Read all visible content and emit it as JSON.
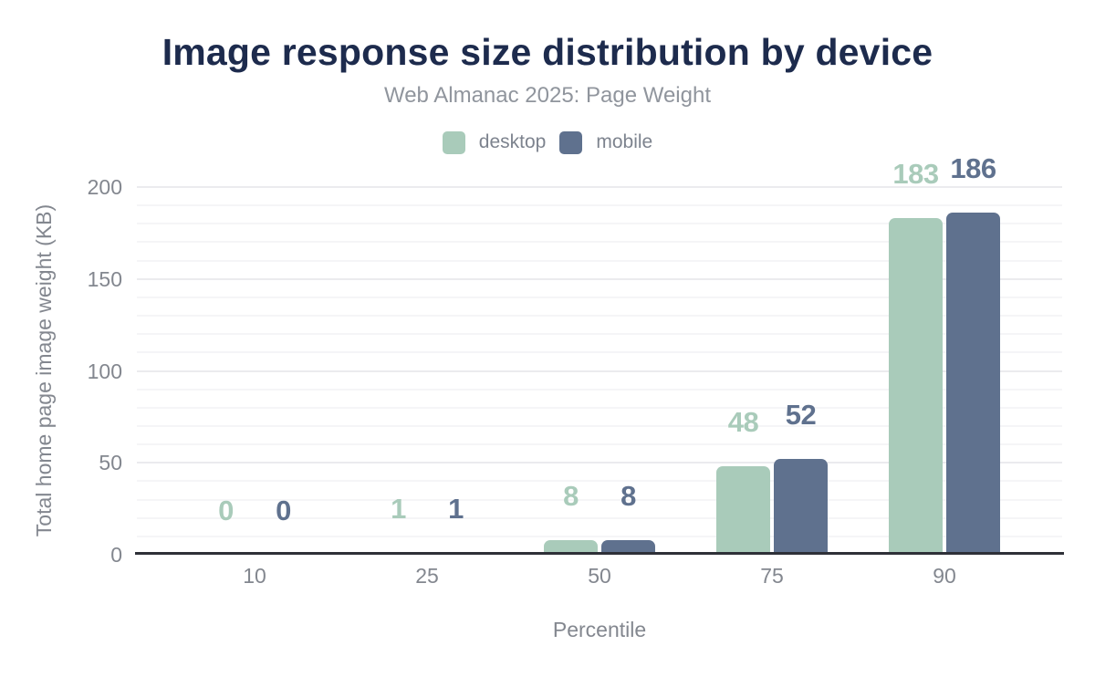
{
  "chart_data": {
    "type": "bar",
    "title": "Image response size distribution by device",
    "subtitle": "Web Almanac 2025: Page Weight",
    "xlabel": "Percentile",
    "ylabel": "Total home page image weight (KB)",
    "categories": [
      "10",
      "25",
      "50",
      "75",
      "90"
    ],
    "series": [
      {
        "name": "desktop",
        "color": "#a9cbba",
        "values": [
          0,
          1,
          8,
          48,
          183
        ]
      },
      {
        "name": "mobile",
        "color": "#5f718e",
        "values": [
          0,
          1,
          8,
          52,
          186
        ]
      }
    ],
    "ylim": [
      0,
      200
    ],
    "yticks": [
      0,
      50,
      100,
      150,
      200
    ],
    "minor_grid_step": 10,
    "major_grid_step": 50,
    "grid": true,
    "legend_position": "top",
    "data_labels": true
  },
  "colors": {
    "background": "#ffffff",
    "title": "#1d2b4d",
    "subtitle": "#90959d",
    "legend_text": "#7d838e",
    "tick": "#83878f",
    "axis_title": "#83878f",
    "axis_line": "#2e3038",
    "grid_major": "#ebebee",
    "grid_minor": "#f5f5f7",
    "desktop": "#a9cbba",
    "mobile": "#5f718e"
  }
}
